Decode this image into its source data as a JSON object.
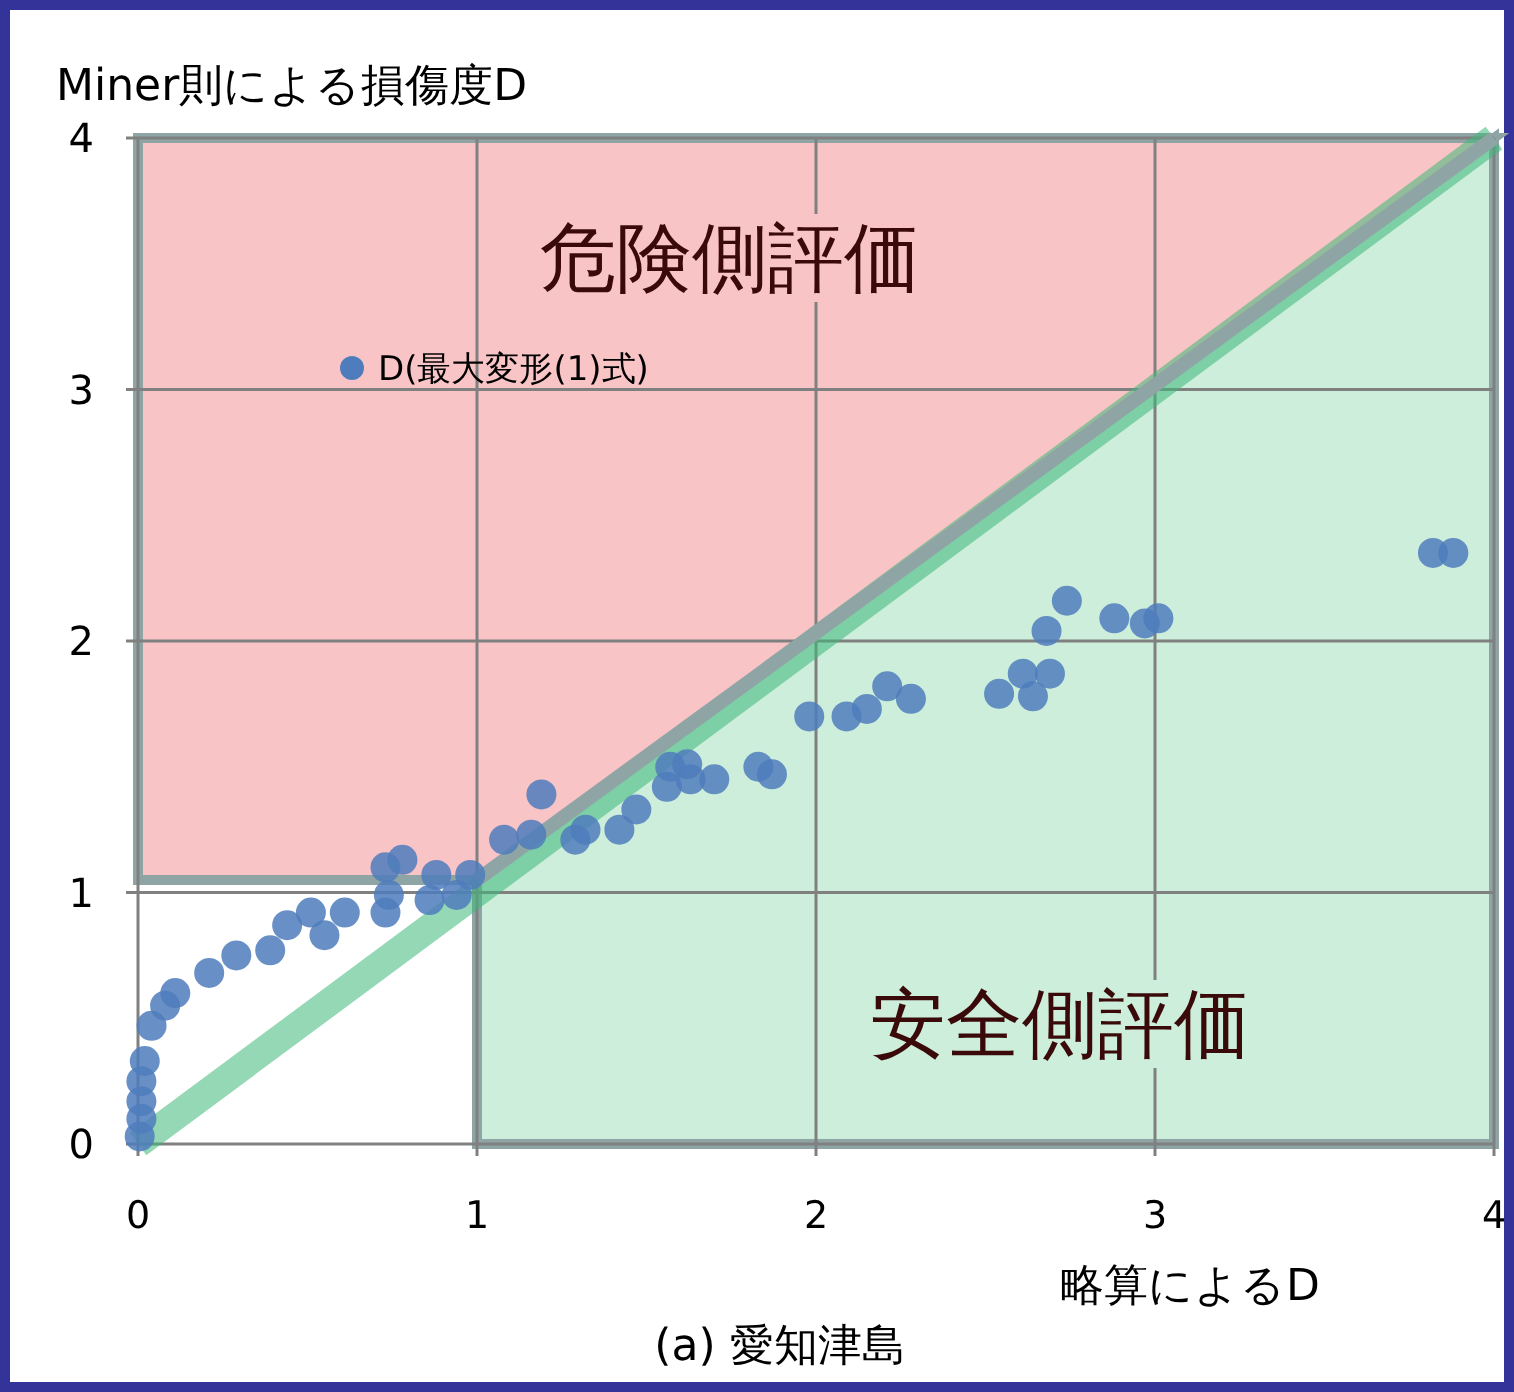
{
  "chart_data": {
    "type": "scatter",
    "title": "(a) 愛知津島",
    "xlabel": "略算によるD",
    "ylabel": "Miner則による損傷度D",
    "annotations": [
      "危険側評価",
      "安全側評価"
    ],
    "xlim": [
      0,
      4
    ],
    "ylim": [
      0,
      4
    ],
    "xticks": [
      0,
      1,
      2,
      3,
      4
    ],
    "yticks": [
      0,
      1,
      2,
      3,
      4
    ],
    "grid": true,
    "legend": "top left",
    "series": [
      {
        "name": "D(最大変形(1)式)",
        "color": "#4f7cbc",
        "marker": "circle",
        "x": [
          0.005,
          0.01,
          0.01,
          0.01,
          0.02,
          0.04,
          0.08,
          0.11,
          0.21,
          0.29,
          0.39,
          0.44,
          0.55,
          0.51,
          0.61,
          0.73,
          0.74,
          0.86,
          0.94,
          0.73,
          0.78,
          0.88,
          0.98,
          1.08,
          1.16,
          1.19,
          1.29,
          1.32,
          1.42,
          1.47,
          1.56,
          1.57,
          1.62,
          1.63,
          1.7,
          1.83,
          1.87,
          1.98,
          2.09,
          2.15,
          2.21,
          2.28,
          2.54,
          2.61,
          2.64,
          2.69,
          2.68,
          2.74,
          2.88,
          2.97,
          3.01,
          3.82,
          3.88
        ],
        "values": [
          0.03,
          0.1,
          0.17,
          0.25,
          0.33,
          0.47,
          0.55,
          0.6,
          0.68,
          0.75,
          0.77,
          0.87,
          0.83,
          0.92,
          0.92,
          0.92,
          0.99,
          0.97,
          0.99,
          1.1,
          1.13,
          1.07,
          1.07,
          1.21,
          1.23,
          1.39,
          1.21,
          1.25,
          1.25,
          1.33,
          1.42,
          1.5,
          1.51,
          1.45,
          1.45,
          1.5,
          1.47,
          1.7,
          1.7,
          1.73,
          1.82,
          1.77,
          1.79,
          1.87,
          1.78,
          1.87,
          2.04,
          2.16,
          2.09,
          2.07,
          2.09,
          2.35,
          2.35
        ]
      },
      {
        "type": "line",
        "color": "#3cb878",
        "x": [
          0,
          4
        ],
        "values": [
          0,
          4
        ]
      },
      {
        "type": "line",
        "color": "#8fa5a5",
        "x": [
          1,
          4
        ],
        "values": [
          1.05,
          4
        ]
      }
    ]
  }
}
